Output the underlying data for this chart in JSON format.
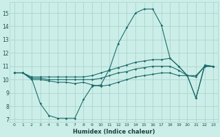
{
  "xlabel": "Humidex (Indice chaleur)",
  "background_color": "#cceee8",
  "grid_color": "#aad4cc",
  "line_color": "#1a6b6b",
  "xlim": [
    -0.5,
    23.5
  ],
  "ylim": [
    6.8,
    15.8
  ],
  "yticks": [
    7,
    8,
    9,
    10,
    11,
    12,
    13,
    14,
    15
  ],
  "xticks": [
    0,
    1,
    2,
    3,
    4,
    5,
    6,
    7,
    8,
    9,
    10,
    11,
    12,
    13,
    14,
    15,
    16,
    17,
    18,
    19,
    20,
    21,
    22,
    23
  ],
  "series": [
    {
      "x": [
        0,
        1,
        2,
        3,
        4,
        5,
        6,
        7,
        8,
        9,
        10,
        11,
        12,
        13,
        14,
        15,
        16,
        17,
        18,
        19,
        20,
        21,
        22,
        23
      ],
      "y": [
        10.5,
        10.5,
        10.1,
        8.2,
        7.3,
        7.1,
        7.1,
        7.1,
        8.5,
        9.5,
        9.6,
        10.8,
        12.7,
        13.9,
        15.0,
        15.3,
        15.3,
        14.1,
        11.6,
        11.0,
        10.3,
        8.6,
        11.1,
        11.0
      ]
    },
    {
      "x": [
        0,
        1,
        2,
        3,
        4,
        5,
        6,
        7,
        8,
        9,
        10,
        11,
        12,
        13,
        14,
        15,
        16,
        17,
        18,
        19,
        20,
        21,
        22,
        23
      ],
      "y": [
        10.5,
        10.5,
        10.2,
        10.2,
        10.2,
        10.2,
        10.2,
        10.2,
        10.2,
        10.3,
        10.5,
        10.7,
        10.9,
        11.1,
        11.3,
        11.4,
        11.5,
        11.5,
        11.6,
        11.0,
        10.3,
        10.3,
        11.0,
        11.0
      ]
    },
    {
      "x": [
        0,
        1,
        2,
        3,
        4,
        5,
        6,
        7,
        8,
        9,
        10,
        11,
        12,
        13,
        14,
        15,
        16,
        17,
        18,
        19,
        20,
        21,
        22,
        23
      ],
      "y": [
        10.5,
        10.5,
        10.1,
        10.1,
        10.0,
        10.0,
        10.0,
        10.0,
        10.0,
        10.0,
        10.1,
        10.3,
        10.5,
        10.6,
        10.8,
        10.9,
        11.0,
        11.0,
        11.0,
        10.7,
        10.3,
        10.2,
        11.0,
        11.0
      ]
    },
    {
      "x": [
        0,
        1,
        2,
        3,
        4,
        5,
        6,
        7,
        8,
        9,
        10,
        11,
        12,
        13,
        14,
        15,
        16,
        17,
        18,
        19,
        20,
        21,
        22,
        23
      ],
      "y": [
        10.5,
        10.5,
        10.0,
        10.0,
        9.9,
        9.8,
        9.8,
        9.7,
        9.8,
        9.6,
        9.5,
        9.6,
        9.8,
        10.0,
        10.2,
        10.3,
        10.4,
        10.5,
        10.5,
        10.3,
        10.3,
        8.6,
        11.0,
        11.0
      ]
    }
  ]
}
